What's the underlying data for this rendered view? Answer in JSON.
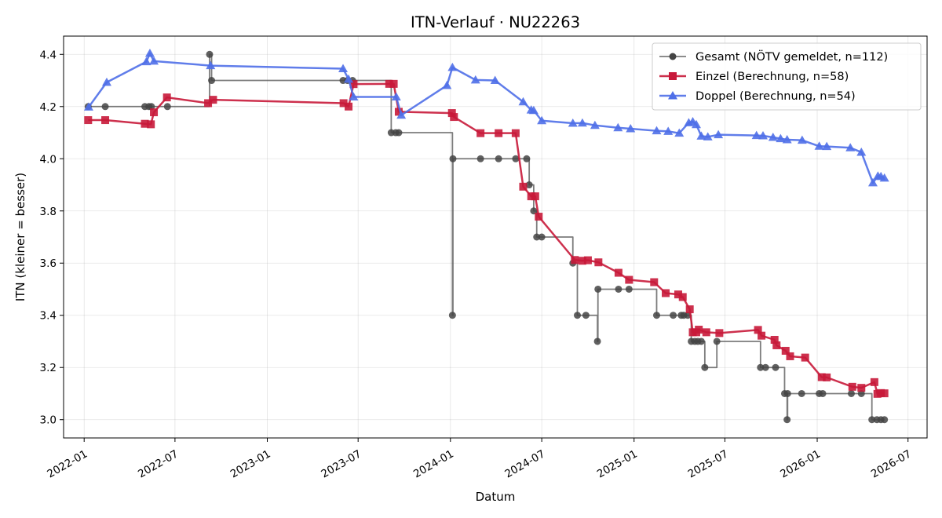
{
  "chart_data": {
    "type": "line",
    "title": "ITN-Verlauf · NU22263",
    "xlabel": "Datum",
    "ylabel": "ITN  (kleiner = besser)",
    "xlim": [
      "2021-11-21",
      "2026-08-08"
    ],
    "ylim": [
      2.93,
      4.47
    ],
    "x_ticks": [
      "2022-01-01",
      "2022-07-01",
      "2023-01-01",
      "2023-07-01",
      "2024-01-01",
      "2024-07-01",
      "2025-01-01",
      "2025-07-01",
      "2026-01-01",
      "2026-07-01"
    ],
    "x_tick_labels": [
      "2022-01",
      "2022-07",
      "2023-01",
      "2023-07",
      "2024-01",
      "2024-07",
      "2025-01",
      "2025-07",
      "2026-01",
      "2026-07"
    ],
    "y_ticks": [
      3.0,
      3.2,
      3.4,
      3.6,
      3.8,
      4.0,
      4.2,
      4.4
    ],
    "y_tick_labels": [
      "3.0",
      "3.2",
      "3.4",
      "3.6",
      "3.8",
      "4.0",
      "4.2",
      "4.4"
    ],
    "grid": true,
    "legend_position": "top-right",
    "series": [
      {
        "name": "Gesamt (NÖTV gemeldet, n=112)",
        "color": "#444444",
        "marker": "circle",
        "line_style": "step",
        "points": [
          [
            "2022-01-09",
            4.2
          ],
          [
            "2022-02-12",
            4.2
          ],
          [
            "2022-05-02",
            4.2
          ],
          [
            "2022-05-10",
            4.2
          ],
          [
            "2022-05-15",
            4.2
          ],
          [
            "2022-06-16",
            4.2
          ],
          [
            "2022-09-08",
            4.4
          ],
          [
            "2022-09-12",
            4.3
          ],
          [
            "2023-06-01",
            4.3
          ],
          [
            "2023-06-10",
            4.3
          ],
          [
            "2023-06-20",
            4.3
          ],
          [
            "2023-09-05",
            4.1
          ],
          [
            "2023-09-14",
            4.1
          ],
          [
            "2023-09-20",
            4.1
          ],
          [
            "2024-01-05",
            3.4
          ],
          [
            "2024-01-06",
            4.0
          ],
          [
            "2024-03-01",
            4.0
          ],
          [
            "2024-04-06",
            4.0
          ],
          [
            "2024-05-10",
            4.0
          ],
          [
            "2024-06-01",
            4.0
          ],
          [
            "2024-06-06",
            3.9
          ],
          [
            "2024-06-15",
            3.8
          ],
          [
            "2024-06-21",
            3.7
          ],
          [
            "2024-07-01",
            3.7
          ],
          [
            "2024-09-01",
            3.6
          ],
          [
            "2024-09-10",
            3.4
          ],
          [
            "2024-09-27",
            3.4
          ],
          [
            "2024-10-20",
            3.3
          ],
          [
            "2024-10-21",
            3.5
          ],
          [
            "2024-12-01",
            3.5
          ],
          [
            "2024-12-22",
            3.5
          ],
          [
            "2025-02-15",
            3.4
          ],
          [
            "2025-03-20",
            3.4
          ],
          [
            "2025-04-05",
            3.4
          ],
          [
            "2025-04-10",
            3.4
          ],
          [
            "2025-04-18",
            3.4
          ],
          [
            "2025-04-25",
            3.3
          ],
          [
            "2025-05-02",
            3.3
          ],
          [
            "2025-05-08",
            3.3
          ],
          [
            "2025-05-15",
            3.3
          ],
          [
            "2025-05-22",
            3.2
          ],
          [
            "2025-06-15",
            3.3
          ],
          [
            "2025-09-10",
            3.2
          ],
          [
            "2025-09-20",
            3.2
          ],
          [
            "2025-10-10",
            3.2
          ],
          [
            "2025-10-28",
            3.1
          ],
          [
            "2025-11-02",
            3.0
          ],
          [
            "2025-11-03",
            3.1
          ],
          [
            "2025-12-01",
            3.1
          ],
          [
            "2026-01-05",
            3.1
          ],
          [
            "2026-01-12",
            3.1
          ],
          [
            "2026-03-10",
            3.1
          ],
          [
            "2026-03-30",
            3.1
          ],
          [
            "2026-04-20",
            3.0
          ],
          [
            "2026-04-30",
            3.0
          ],
          [
            "2026-05-08",
            3.0
          ],
          [
            "2026-05-15",
            3.0
          ]
        ]
      },
      {
        "name": "Einzel (Berechnung, n=58)",
        "color": "#c8193a",
        "marker": "square",
        "line_style": "line",
        "points": [
          [
            "2022-01-09",
            4.148
          ],
          [
            "2022-02-12",
            4.148
          ],
          [
            "2022-05-02",
            4.134
          ],
          [
            "2022-05-14",
            4.132
          ],
          [
            "2022-05-20",
            4.178
          ],
          [
            "2022-06-15",
            4.235
          ],
          [
            "2022-09-05",
            4.213
          ],
          [
            "2022-09-15",
            4.226
          ],
          [
            "2023-06-02",
            4.213
          ],
          [
            "2023-06-12",
            4.2
          ],
          [
            "2023-06-22",
            4.286
          ],
          [
            "2023-09-01",
            4.287
          ],
          [
            "2023-09-10",
            4.287
          ],
          [
            "2023-09-20",
            4.18
          ],
          [
            "2024-01-04",
            4.175
          ],
          [
            "2024-01-08",
            4.16
          ],
          [
            "2024-03-01",
            4.098
          ],
          [
            "2024-04-06",
            4.098
          ],
          [
            "2024-05-10",
            4.098
          ],
          [
            "2024-05-25",
            3.893
          ],
          [
            "2024-06-10",
            3.856
          ],
          [
            "2024-06-18",
            3.856
          ],
          [
            "2024-06-25",
            3.778
          ],
          [
            "2024-09-05",
            3.612
          ],
          [
            "2024-09-20",
            3.609
          ],
          [
            "2024-10-01",
            3.611
          ],
          [
            "2024-10-22",
            3.603
          ],
          [
            "2024-12-01",
            3.563
          ],
          [
            "2024-12-22",
            3.536
          ],
          [
            "2025-02-10",
            3.527
          ],
          [
            "2025-03-05",
            3.485
          ],
          [
            "2025-03-30",
            3.48
          ],
          [
            "2025-04-08",
            3.47
          ],
          [
            "2025-04-22",
            3.423
          ],
          [
            "2025-04-28",
            3.335
          ],
          [
            "2025-05-05",
            3.335
          ],
          [
            "2025-05-10",
            3.345
          ],
          [
            "2025-05-25",
            3.335
          ],
          [
            "2025-06-20",
            3.332
          ],
          [
            "2025-09-05",
            3.344
          ],
          [
            "2025-09-12",
            3.322
          ],
          [
            "2025-10-08",
            3.306
          ],
          [
            "2025-10-12",
            3.285
          ],
          [
            "2025-10-30",
            3.264
          ],
          [
            "2025-11-08",
            3.243
          ],
          [
            "2025-12-08",
            3.238
          ],
          [
            "2026-01-10",
            3.163
          ],
          [
            "2026-01-20",
            3.162
          ],
          [
            "2026-03-12",
            3.126
          ],
          [
            "2026-03-30",
            3.122
          ],
          [
            "2026-04-25",
            3.144
          ],
          [
            "2026-05-01",
            3.099
          ],
          [
            "2026-05-08",
            3.102
          ],
          [
            "2026-05-15",
            3.101
          ]
        ]
      },
      {
        "name": "Doppel (Berechnung, n=54)",
        "color": "#4f6fe8",
        "marker": "triangle",
        "line_style": "line",
        "points": [
          [
            "2022-01-10",
            4.198
          ],
          [
            "2022-02-15",
            4.293
          ],
          [
            "2022-05-05",
            4.372
          ],
          [
            "2022-05-12",
            4.404
          ],
          [
            "2022-05-20",
            4.374
          ],
          [
            "2022-09-10",
            4.357
          ],
          [
            "2023-06-01",
            4.345
          ],
          [
            "2023-06-12",
            4.305
          ],
          [
            "2023-06-22",
            4.237
          ],
          [
            "2023-09-15",
            4.237
          ],
          [
            "2023-09-25",
            4.167
          ],
          [
            "2023-12-25",
            4.281
          ],
          [
            "2024-01-05",
            4.35
          ],
          [
            "2024-02-20",
            4.302
          ],
          [
            "2024-03-30",
            4.3
          ],
          [
            "2024-05-25",
            4.218
          ],
          [
            "2024-06-10",
            4.187
          ],
          [
            "2024-06-15",
            4.185
          ],
          [
            "2024-07-01",
            4.146
          ],
          [
            "2024-09-01",
            4.136
          ],
          [
            "2024-09-20",
            4.137
          ],
          [
            "2024-10-15",
            4.128
          ],
          [
            "2024-11-30",
            4.119
          ],
          [
            "2024-12-25",
            4.115
          ],
          [
            "2025-02-15",
            4.107
          ],
          [
            "2025-03-10",
            4.105
          ],
          [
            "2025-04-01",
            4.098
          ],
          [
            "2025-04-20",
            4.138
          ],
          [
            "2025-04-28",
            4.142
          ],
          [
            "2025-05-05",
            4.131
          ],
          [
            "2025-05-15",
            4.087
          ],
          [
            "2025-05-28",
            4.084
          ],
          [
            "2025-06-18",
            4.092
          ],
          [
            "2025-09-02",
            4.089
          ],
          [
            "2025-09-15",
            4.088
          ],
          [
            "2025-10-05",
            4.082
          ],
          [
            "2025-10-20",
            4.077
          ],
          [
            "2025-11-02",
            4.073
          ],
          [
            "2025-12-02",
            4.071
          ],
          [
            "2026-01-05",
            4.048
          ],
          [
            "2026-01-20",
            4.047
          ],
          [
            "2026-03-08",
            4.042
          ],
          [
            "2026-03-30",
            4.025
          ],
          [
            "2026-04-22",
            3.908
          ],
          [
            "2026-05-02",
            3.934
          ],
          [
            "2026-05-08",
            3.932
          ],
          [
            "2026-05-15",
            3.926
          ]
        ]
      }
    ]
  }
}
